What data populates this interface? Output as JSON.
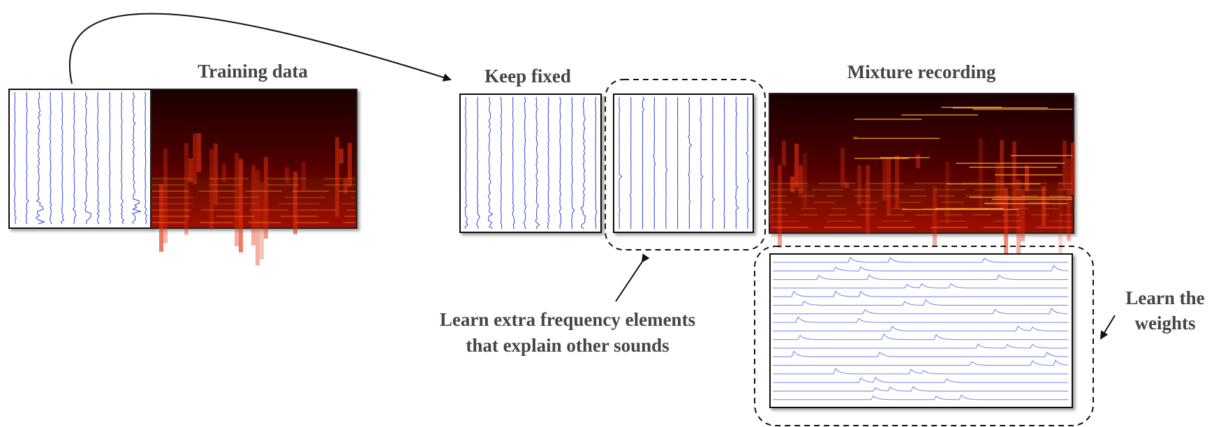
{
  "labels": {
    "training_data": "Training data",
    "keep_fixed": "Keep fixed",
    "mixture_recording": "Mixture recording",
    "learn_extra": [
      "Learn extra frequency elements",
      "that explain other sounds"
    ],
    "learn_weights": [
      "Learn the",
      "weights"
    ]
  }
}
